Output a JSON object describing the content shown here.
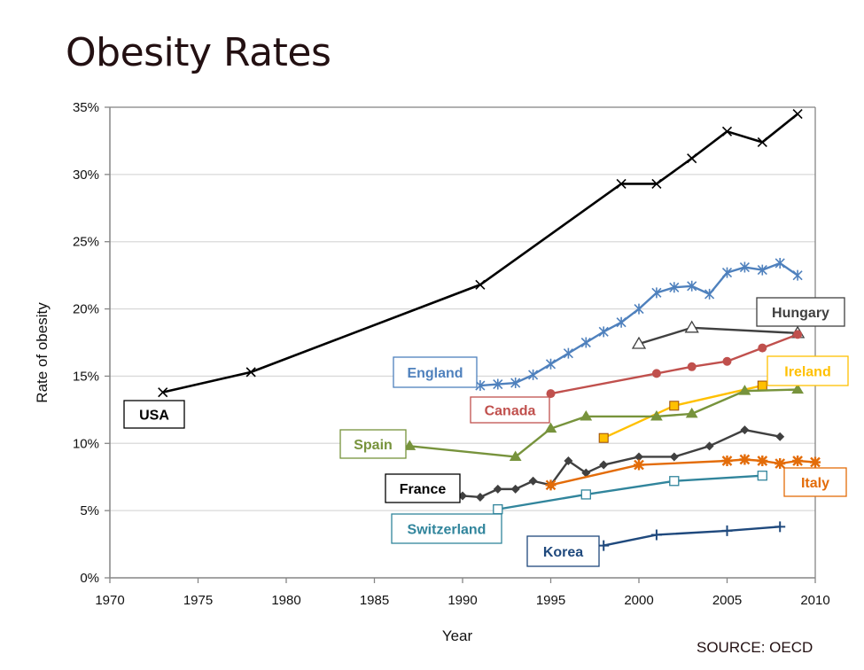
{
  "title": "Obesity Rates",
  "source": "SOURCE: OECD",
  "chart_data": {
    "type": "line",
    "title": "Obesity Rates",
    "xlabel": "Year",
    "ylabel": "Rate of obesity",
    "xlim": [
      1970,
      2010
    ],
    "ylim": [
      0,
      35
    ],
    "xticks": [
      1970,
      1975,
      1980,
      1985,
      1990,
      1995,
      2000,
      2005,
      2010
    ],
    "xtick_labels": [
      "1970",
      "1975",
      "1980",
      "1985",
      "1990",
      "1995",
      "2000",
      "2005",
      "2010"
    ],
    "yticks": [
      0,
      5,
      10,
      15,
      20,
      25,
      30,
      35
    ],
    "ytick_labels": [
      "0%",
      "5%",
      "10%",
      "15%",
      "20%",
      "25%",
      "30%",
      "35%"
    ],
    "grid": "horizontal",
    "legend": "inline labels",
    "series": [
      {
        "name": "USA",
        "color": "#000000",
        "marker": "x",
        "label_color": "#000000",
        "x": [
          1973,
          1978,
          1991,
          1999,
          2001,
          2003,
          2005,
          2007,
          2009
        ],
        "y": [
          13.8,
          15.3,
          21.8,
          29.3,
          29.3,
          31.2,
          33.2,
          32.4,
          34.5
        ]
      },
      {
        "name": "England",
        "color": "#4f81bd",
        "marker": "asterisk",
        "label_color": "#4f81bd",
        "x": [
          1991,
          1992,
          1993,
          1994,
          1995,
          1996,
          1997,
          1998,
          1999,
          2000,
          2001,
          2002,
          2003,
          2004,
          2005,
          2006,
          2007,
          2008,
          2009
        ],
        "y": [
          14.3,
          14.4,
          14.5,
          15.1,
          15.9,
          16.7,
          17.5,
          18.3,
          19.0,
          20.0,
          21.2,
          21.6,
          21.7,
          21.1,
          22.7,
          23.1,
          22.9,
          23.4,
          22.5
        ]
      },
      {
        "name": "Hungary",
        "color": "#404040",
        "marker": "triangle-open",
        "label_color": "#404040",
        "x": [
          2000,
          2003,
          2009
        ],
        "y": [
          17.4,
          18.6,
          18.2
        ]
      },
      {
        "name": "Canada",
        "color": "#c0504d",
        "marker": "circle",
        "label_color": "#c0504d",
        "x": [
          1995,
          2001,
          2003,
          2005,
          2007,
          2009
        ],
        "y": [
          13.7,
          15.2,
          15.7,
          16.1,
          17.1,
          18.1
        ]
      },
      {
        "name": "Ireland",
        "color": "#ffc000",
        "marker": "square-filled",
        "label_color": "#ffc000",
        "x": [
          1998,
          2002,
          2007
        ],
        "y": [
          10.4,
          12.8,
          14.3
        ]
      },
      {
        "name": "Spain",
        "color": "#77933c",
        "marker": "triangle",
        "label_color": "#77933c",
        "x": [
          1987,
          1993,
          1995,
          1997,
          2001,
          2003,
          2006,
          2009
        ],
        "y": [
          9.8,
          9.0,
          11.1,
          12.0,
          12.0,
          12.2,
          13.9,
          14.0
        ]
      },
      {
        "name": "France",
        "color": "#404040",
        "marker": "diamond",
        "label_color": "#000000",
        "x": [
          1990,
          1991,
          1992,
          1993,
          1994,
          1995,
          1996,
          1997,
          1998,
          2000,
          2002,
          2004,
          2006,
          2008
        ],
        "y": [
          6.1,
          6.0,
          6.6,
          6.6,
          7.2,
          6.9,
          8.7,
          7.8,
          8.4,
          9.0,
          9.0,
          9.8,
          11.0,
          10.5
        ]
      },
      {
        "name": "Italy",
        "color": "#e36c09",
        "marker": "star",
        "label_color": "#e36c09",
        "x": [
          1995,
          2000,
          2005,
          2006,
          2007,
          2008,
          2009,
          2010
        ],
        "y": [
          6.9,
          8.4,
          8.7,
          8.8,
          8.7,
          8.5,
          8.7,
          8.6
        ]
      },
      {
        "name": "Switzerland",
        "color": "#31859c",
        "marker": "square-open",
        "label_color": "#31859c",
        "x": [
          1992,
          1997,
          2002,
          2007
        ],
        "y": [
          5.1,
          6.2,
          7.2,
          7.6
        ]
      },
      {
        "name": "Korea",
        "color": "#1f497d",
        "marker": "plus",
        "label_color": "#1f497d",
        "x": [
          1998,
          2001,
          2005,
          2008
        ],
        "y": [
          2.4,
          3.2,
          3.5,
          3.8
        ]
      }
    ]
  }
}
